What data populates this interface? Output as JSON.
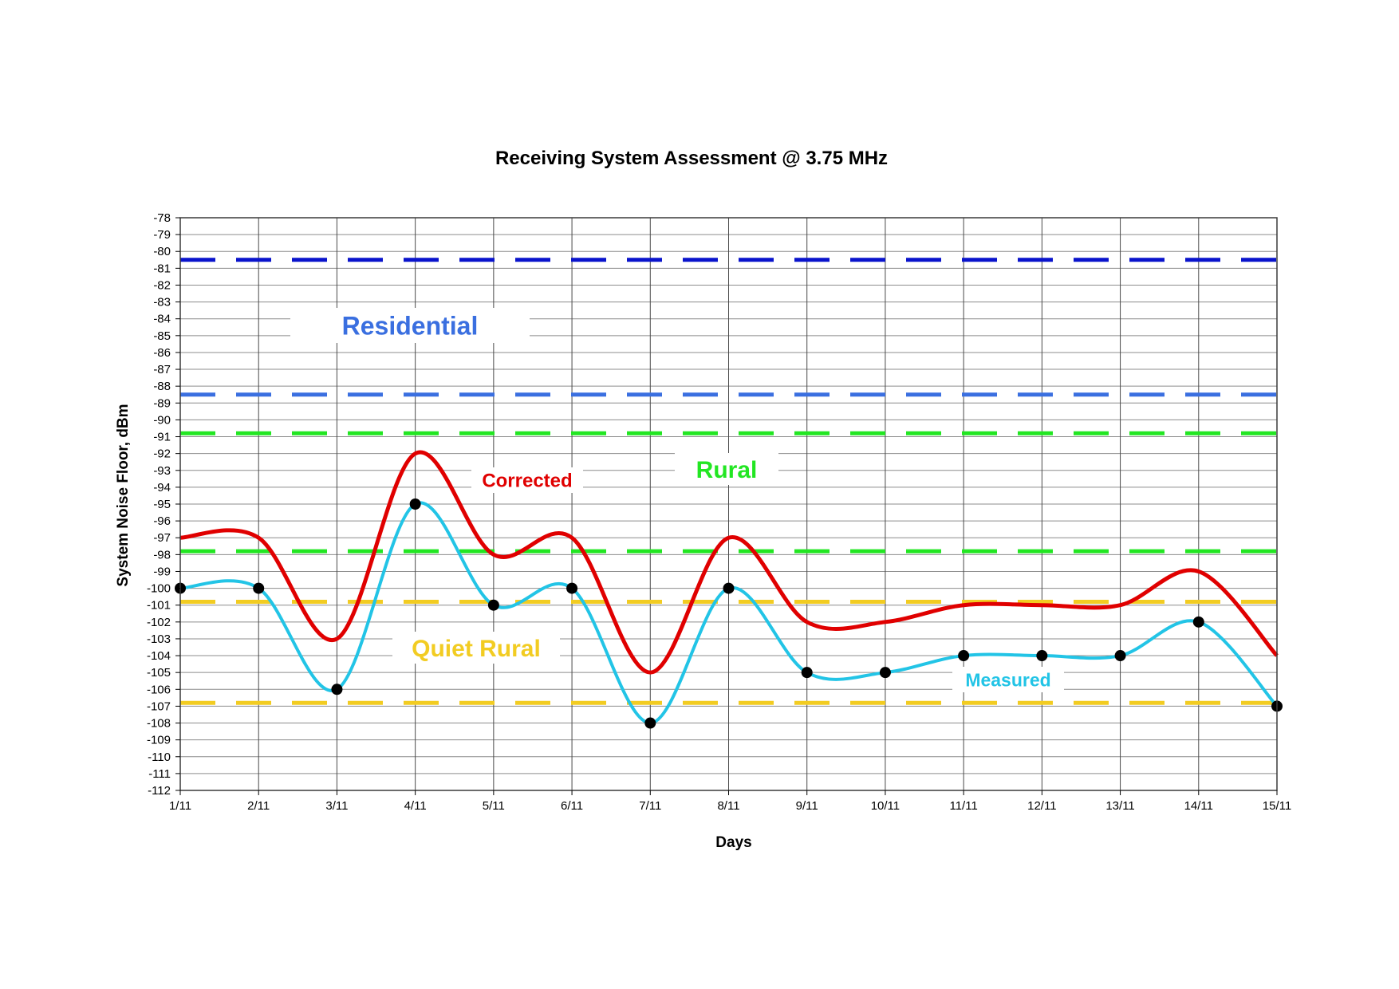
{
  "chart_data": {
    "type": "line",
    "title": "Receiving System Assessment @ 3.75  MHz",
    "xlabel": "Days",
    "ylabel": "System Noise Floor, dBm",
    "ylim": [
      -112,
      -78
    ],
    "yticks": [
      -78,
      -79,
      -80,
      -81,
      -82,
      -83,
      -84,
      -85,
      -86,
      -87,
      -88,
      -89,
      -90,
      -91,
      -92,
      -93,
      -94,
      -95,
      -96,
      -97,
      -98,
      -99,
      -100,
      -101,
      -102,
      -103,
      -104,
      -105,
      -106,
      -107,
      -108,
      -109,
      -110,
      -111,
      -112
    ],
    "categories": [
      "1/11",
      "2/11",
      "3/11",
      "4/11",
      "5/11",
      "6/11",
      "7/11",
      "8/11",
      "9/11",
      "10/11",
      "11/11",
      "12/11",
      "13/11",
      "14/11",
      "15/11"
    ],
    "grid": true,
    "series": [
      {
        "name": "Corrected",
        "color": "#e00000",
        "values": [
          -97,
          -97,
          -103,
          -92,
          -98,
          -97,
          -105,
          -97,
          -102,
          -102,
          -101,
          -101,
          -101,
          -99,
          -104
        ]
      },
      {
        "name": "Measured",
        "color": "#22c4e6",
        "marker_color": "#000000",
        "values": [
          -100,
          -100,
          -106,
          -95,
          -101,
          -100,
          -108,
          -100,
          -105,
          -105,
          -104,
          -104,
          -104,
          -102,
          -107
        ]
      }
    ],
    "reference_lines": [
      {
        "value": -80.5,
        "color": "#0a14cc"
      },
      {
        "value": -88.5,
        "color": "#3a6fe0"
      },
      {
        "value": -90.8,
        "color": "#22e622"
      },
      {
        "value": -97.8,
        "color": "#22e622"
      },
      {
        "value": -100.8,
        "color": "#f2cc22"
      },
      {
        "value": -106.8,
        "color": "#f2cc22"
      }
    ],
    "annotations": [
      {
        "text": "Residential",
        "color": "#3a6fe0"
      },
      {
        "text": "Rural",
        "color": "#22e622"
      },
      {
        "text": "Quiet Rural",
        "color": "#f2cc22"
      },
      {
        "text": "Corrected",
        "color": "#e00000"
      },
      {
        "text": "Measured",
        "color": "#22c4e6"
      }
    ]
  }
}
